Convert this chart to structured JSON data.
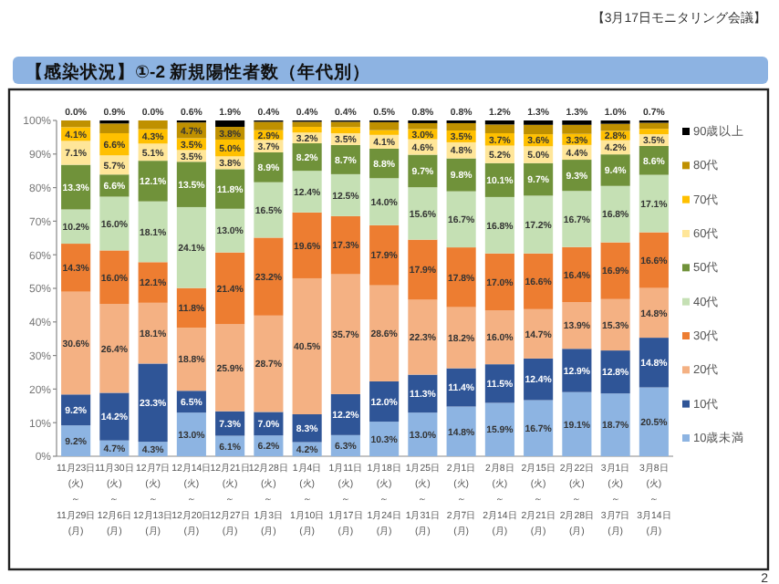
{
  "chart_data": {
    "type": "bar",
    "stacked": true,
    "title": "【感染状況】①-2 新規陽性者数（年代別）",
    "annotations": [
      "【3月17日モニタリング会議】",
      "2"
    ],
    "categories": [
      "11月23日\n(火)\n～\n11月29日\n(月)",
      "11月30日\n(火)\n～\n12月6日\n(月)",
      "12月7日\n(火)\n～\n12月13日\n(月)",
      "12月14日\n(火)\n～\n12月20日\n(月)",
      "12月21日\n(火)\n～\n12月27日\n(月)",
      "12月28日\n(火)\n～\n1月3日\n(月)",
      "1月4日\n(火)\n～\n1月10日\n(月)",
      "1月11日\n(火)\n～\n1月17日\n(月)",
      "1月18日\n(火)\n～\n1月24日\n(月)",
      "1月25日\n(火)\n～\n1月31日\n(月)",
      "2月1日\n(火)\n～\n2月7日\n(月)",
      "2月8日\n(火)\n～\n2月14日\n(月)",
      "2月15日\n(火)\n～\n2月21日\n(月)",
      "2月22日\n(火)\n～\n2月28日\n(月)",
      "3月1日\n(火)\n～\n3月7日\n(月)",
      "3月8日\n(火)\n～\n3月14日\n(月)"
    ],
    "series": [
      {
        "name": "10歳未満",
        "color": "#8db4e2",
        "values": [
          9.2,
          4.7,
          4.3,
          13.0,
          6.1,
          6.2,
          4.2,
          6.3,
          10.3,
          13.0,
          14.8,
          15.9,
          16.7,
          19.1,
          18.7,
          20.5
        ],
        "value_labels": [
          "9.2%",
          "4.7%",
          "4.3%",
          "13.0%",
          "6.1%",
          "6.2%",
          "4.2%",
          "6.3%",
          "10.3%",
          "13.0%",
          "14.8%",
          "15.9%",
          "16.7%",
          "19.1%",
          "18.7%",
          "20.5%"
        ]
      },
      {
        "name": "10代",
        "color": "#2f5597",
        "values": [
          9.2,
          14.2,
          23.3,
          6.5,
          7.3,
          7.0,
          8.3,
          12.2,
          12.0,
          11.3,
          11.4,
          11.5,
          12.4,
          12.9,
          12.8,
          14.8
        ],
        "value_labels": [
          "9.2%",
          "14.2%",
          "23.3%",
          "6.5%",
          "7.3%",
          "7.0%",
          "8.3%",
          "12.2%",
          "12.0%",
          "11.3%",
          "11.4%",
          "11.5%",
          "12.4%",
          "12.9%",
          "12.8%",
          "14.8%"
        ]
      },
      {
        "name": "20代",
        "color": "#f4b183",
        "values": [
          30.6,
          26.4,
          18.1,
          18.8,
          25.9,
          28.7,
          40.5,
          35.7,
          28.6,
          22.3,
          18.2,
          16.0,
          14.7,
          13.9,
          15.3,
          14.8
        ],
        "value_labels": [
          "30.6%",
          "26.4%",
          "18.1%",
          "18.8%",
          "25.9%",
          "28.7%",
          "40.5%",
          "35.7%",
          "28.6%",
          "22.3%",
          "18.2%",
          "16.0%",
          "14.7%",
          "13.9%",
          "15.3%",
          "14.8%"
        ]
      },
      {
        "name": "30代",
        "color": "#ed7d31",
        "values": [
          14.3,
          16.0,
          12.1,
          11.8,
          21.4,
          23.2,
          19.6,
          17.3,
          17.9,
          17.9,
          17.8,
          17.0,
          16.6,
          16.4,
          16.9,
          16.6
        ],
        "value_labels": [
          "14.3%",
          "16.0%",
          "12.1%",
          "11.8%",
          "21.4%",
          "23.2%",
          "19.6%",
          "17.3%",
          "17.9%",
          "17.9%",
          "17.8%",
          "17.0%",
          "16.6%",
          "16.4%",
          "16.9%",
          "16.6%"
        ]
      },
      {
        "name": "40代",
        "color": "#c5e0b4",
        "values": [
          10.2,
          16.0,
          18.1,
          24.1,
          13.0,
          16.5,
          12.4,
          12.5,
          14.0,
          15.6,
          16.7,
          16.8,
          17.2,
          16.7,
          16.8,
          17.1
        ],
        "value_labels": [
          "10.2%",
          "16.0%",
          "18.1%",
          "24.1%",
          "13.0%",
          "16.5%",
          "12.4%",
          "12.5%",
          "14.0%",
          "15.6%",
          "16.7%",
          "16.8%",
          "17.2%",
          "16.7%",
          "16.8%",
          "17.1%"
        ]
      },
      {
        "name": "50代",
        "color": "#70923a",
        "values": [
          13.3,
          6.6,
          12.1,
          13.5,
          11.8,
          8.9,
          8.2,
          8.7,
          8.8,
          9.7,
          9.8,
          10.1,
          9.7,
          9.3,
          9.4,
          8.6
        ],
        "value_labels": [
          "13.3%",
          "6.6%",
          "12.1%",
          "13.5%",
          "11.8%",
          "8.9%",
          "8.2%",
          "8.7%",
          "8.8%",
          "9.7%",
          "9.8%",
          "10.1%",
          "9.7%",
          "9.3%",
          "9.4%",
          "8.6%"
        ]
      },
      {
        "name": "60代",
        "color": "#ffe699",
        "values": [
          7.1,
          5.7,
          5.1,
          3.5,
          3.8,
          3.7,
          3.2,
          3.5,
          4.1,
          4.6,
          4.8,
          5.2,
          5.0,
          4.4,
          4.2,
          3.5
        ],
        "value_labels": [
          "7.1%",
          "5.7%",
          "5.1%",
          "3.5%",
          "3.8%",
          "3.7%",
          "3.2%",
          "3.5%",
          "4.1%",
          "4.6%",
          "4.8%",
          "5.2%",
          "5.0%",
          "4.4%",
          "4.2%",
          "3.5%"
        ]
      },
      {
        "name": "70代",
        "color": "#ffc000",
        "values": [
          4.1,
          6.6,
          4.3,
          3.5,
          5.0,
          2.9,
          1.7,
          1.8,
          1.4,
          3.0,
          3.5,
          3.7,
          3.6,
          3.3,
          2.8,
          1.6
        ],
        "value_labels": [
          "4.1%",
          "6.6%",
          "4.3%",
          "3.5%",
          "5.0%",
          "2.9%",
          null,
          null,
          null,
          "3.0%",
          "3.5%",
          "3.7%",
          "3.6%",
          "3.3%",
          "2.8%",
          null
        ]
      },
      {
        "name": "80代",
        "color": "#bf9000",
        "values": [
          2.0,
          2.9,
          2.6,
          4.7,
          3.8,
          2.5,
          1.5,
          1.6,
          2.4,
          1.8,
          2.2,
          2.6,
          2.8,
          2.7,
          2.1,
          1.8
        ],
        "value_labels": [
          null,
          null,
          null,
          "4.7%",
          "3.8%",
          null,
          null,
          null,
          null,
          null,
          null,
          null,
          null,
          null,
          null,
          null
        ]
      },
      {
        "name": "90歳以上",
        "color": "#000000",
        "values": [
          0.0,
          0.9,
          0.0,
          0.6,
          1.9,
          0.4,
          0.4,
          0.4,
          0.5,
          0.8,
          0.8,
          1.2,
          1.3,
          1.3,
          1.0,
          0.7
        ],
        "value_labels": [
          "0.0%",
          "0.9%",
          "0.0%",
          "0.6%",
          "1.9%",
          "0.4%",
          "0.4%",
          "0.4%",
          "0.5%",
          "0.8%",
          "0.8%",
          "1.2%",
          "1.3%",
          "1.3%",
          "1.0%",
          "0.7%"
        ]
      }
    ],
    "ylim": [
      0,
      100
    ],
    "yticks": [
      {
        "value": 0,
        "label": "0%"
      },
      {
        "value": 10,
        "label": "10%"
      },
      {
        "value": 20,
        "label": "20%"
      },
      {
        "value": 30,
        "label": "30%"
      },
      {
        "value": 40,
        "label": "40%"
      },
      {
        "value": 50,
        "label": "50%"
      },
      {
        "value": 60,
        "label": "60%"
      },
      {
        "value": 70,
        "label": "70%"
      },
      {
        "value": 80,
        "label": "80%"
      },
      {
        "value": 90,
        "label": "90%"
      },
      {
        "value": 100,
        "label": "100%"
      }
    ],
    "legend": "right"
  }
}
